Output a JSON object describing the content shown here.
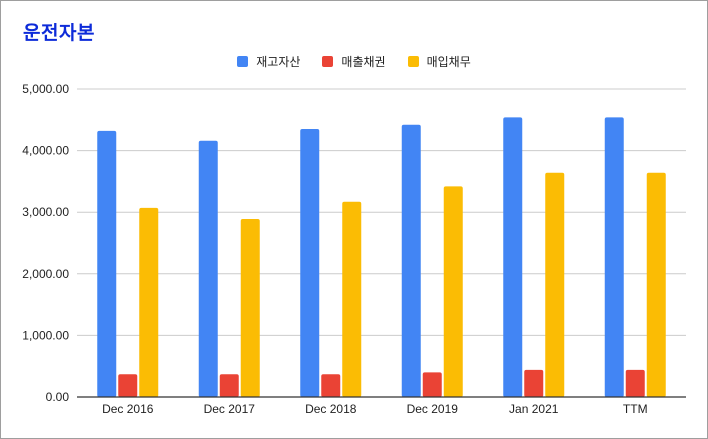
{
  "chart_data": {
    "type": "bar",
    "title": "운전자본",
    "categories": [
      "Dec 2016",
      "Dec 2017",
      "Dec 2018",
      "Dec 2019",
      "Jan 2021",
      "TTM"
    ],
    "series": [
      {
        "name": "재고자산",
        "color": "#4285f4",
        "values": [
          4320,
          4160,
          4350,
          4420,
          4540,
          4540
        ]
      },
      {
        "name": "매출채권",
        "color": "#ea4335",
        "values": [
          370,
          370,
          370,
          400,
          440,
          440
        ]
      },
      {
        "name": "매입채무",
        "color": "#fbbc04",
        "values": [
          3070,
          2890,
          3170,
          3420,
          3640,
          3640
        ]
      }
    ],
    "y_ticks": [
      "0.00",
      "1,000.00",
      "2,000.00",
      "3,000.00",
      "4,000.00",
      "5,000.00"
    ],
    "y_tick_values": [
      0,
      1000,
      2000,
      3000,
      4000,
      5000
    ],
    "ylim": [
      0,
      5000
    ],
    "xlabel": "",
    "ylabel": "",
    "grid": true,
    "legend_position": "top-center",
    "title_color": "#0d2bd9"
  }
}
